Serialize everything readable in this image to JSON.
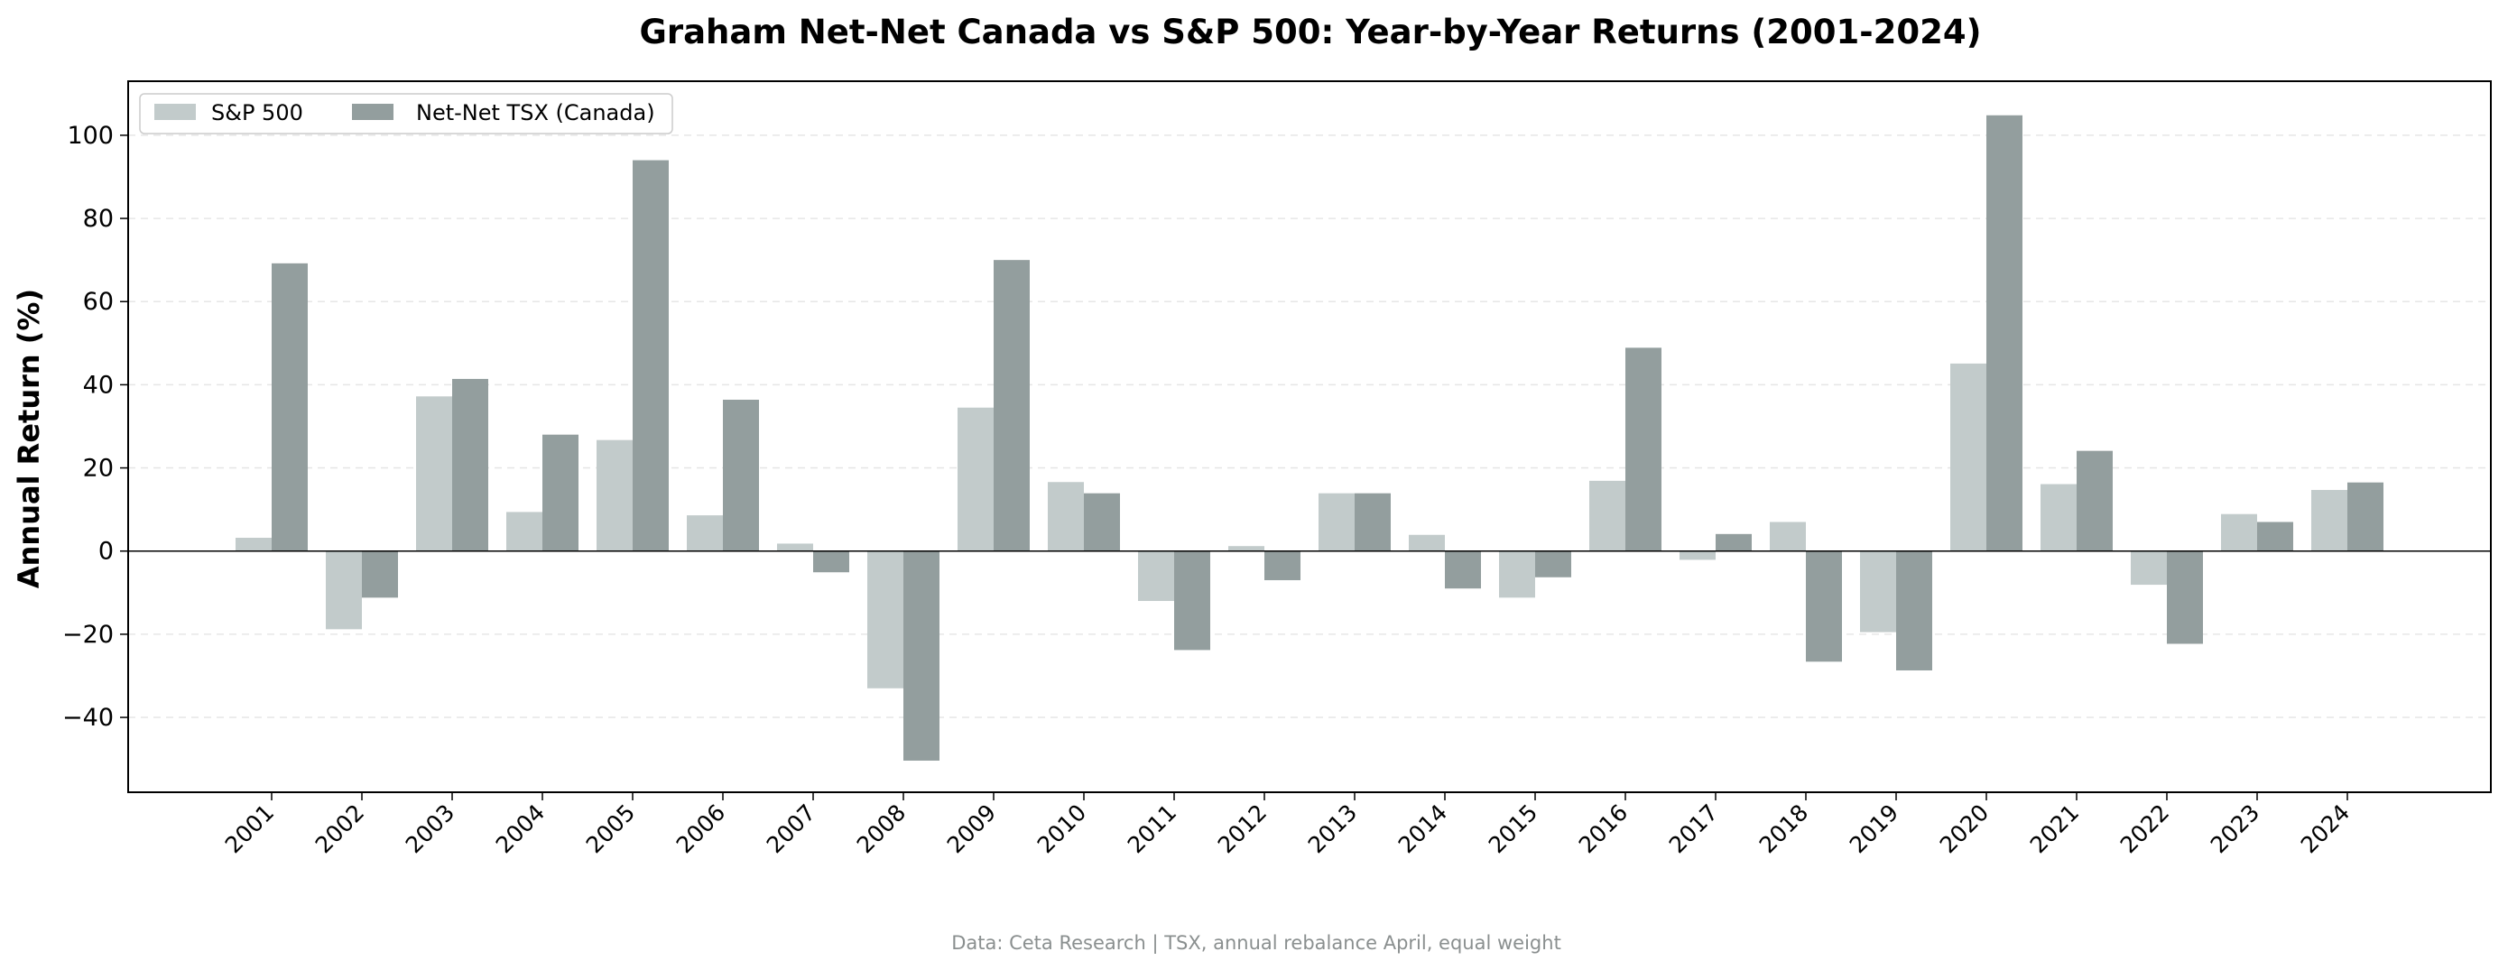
{
  "chart_data": {
    "type": "bar",
    "title": "Graham Net-Net Canada vs S&P 500: Year-by-Year Returns (2001-2024)",
    "xlabel": "",
    "ylabel": "Annual Return (%)",
    "ylim": [
      -58,
      113
    ],
    "yticks": [
      -40,
      -20,
      0,
      20,
      40,
      60,
      80,
      100
    ],
    "ytick_labels": [
      "−40",
      "−20",
      "0",
      "20",
      "40",
      "60",
      "80",
      "100"
    ],
    "grid": "horizontal dashed",
    "legend_position": "top-left",
    "categories": [
      "2001",
      "2002",
      "2003",
      "2004",
      "2005",
      "2006",
      "2007",
      "2008",
      "2009",
      "2010",
      "2011",
      "2012",
      "2013",
      "2014",
      "2015",
      "2016",
      "2017",
      "2018",
      "2019",
      "2020",
      "2021",
      "2022",
      "2023",
      "2024"
    ],
    "series": [
      {
        "name": "S&P 500",
        "color": "#c2cbcb",
        "values": [
          3.2,
          -18.8,
          37.2,
          9.4,
          26.7,
          8.6,
          1.8,
          -33.0,
          34.5,
          16.6,
          -12.0,
          1.2,
          13.9,
          3.9,
          -11.2,
          16.9,
          -2.1,
          7.0,
          -19.5,
          45.1,
          16.1,
          -8.1,
          8.9,
          14.7
        ]
      },
      {
        "name": "Net-Net TSX (Canada)",
        "color": "#939e9e",
        "values": [
          69.2,
          -11.2,
          41.4,
          28.0,
          94.0,
          36.4,
          -5.1,
          -50.4,
          70.0,
          13.9,
          -23.8,
          -7.0,
          13.9,
          -9.0,
          -6.3,
          48.9,
          4.1,
          -26.6,
          -28.7,
          104.8,
          24.1,
          -22.3,
          7.0,
          16.5
        ]
      }
    ],
    "source_note": "Data: Ceta Research | TSX, annual rebalance April, equal weight"
  }
}
